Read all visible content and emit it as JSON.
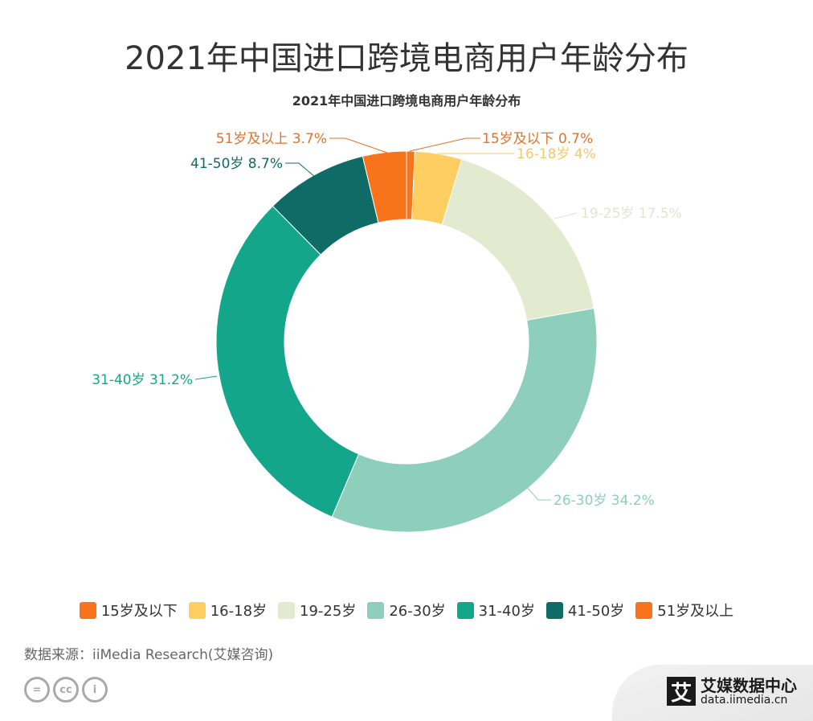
{
  "title": "2021年中国进口跨境电商用户年龄分布",
  "chart_data": {
    "type": "pie",
    "subtype": "donut",
    "title": "2021年中国进口跨境电商用户年龄分布",
    "categories": [
      "15岁及以下",
      "16-18岁",
      "19-25岁",
      "26-30岁",
      "31-40岁",
      "41-50岁",
      "51岁及以上"
    ],
    "values": [
      0.7,
      4,
      17.5,
      34.2,
      31.2,
      8.7,
      3.7
    ],
    "unit": "%",
    "labels": [
      "15岁及以下 0.7%",
      "16-18岁 4%",
      "19-25岁 17.5%",
      "26-30岁 34.2%",
      "31-40岁 31.2%",
      "41-50岁 8.7%",
      "51岁及以上 3.7%"
    ],
    "colors": [
      "#f7731c",
      "#fdcf62",
      "#e2ead0",
      "#8dcfbb",
      "#14a68b",
      "#0e6b66",
      "#f7731c"
    ],
    "label_colors": [
      "#e0722a",
      "#f6c866",
      "#e0e6cf",
      "#8dcfbb",
      "#14a68b",
      "#0e6b66",
      "#e0722a"
    ],
    "legend_placement": "bottom",
    "start": "12 o'clock, clockwise"
  },
  "source": "数据来源：iiMedia Research(艾媒咨询)",
  "license_icons": [
    "cc-nd-icon",
    "cc-icon",
    "cc-by-icon"
  ],
  "brand": {
    "mark": "艾",
    "name": "艾媒数据中心",
    "url": "data.iimedia.cn"
  }
}
